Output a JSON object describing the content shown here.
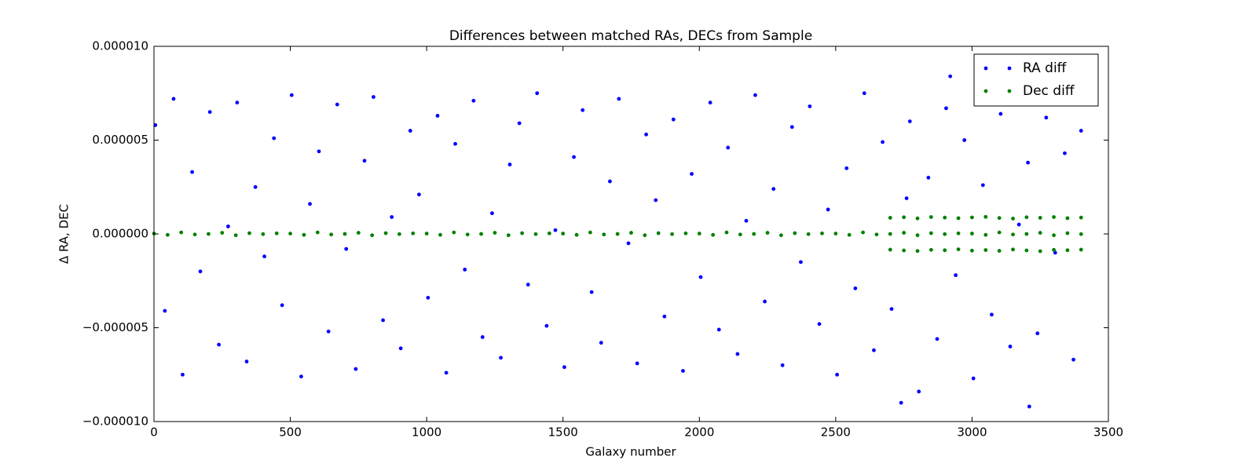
{
  "chart_data": {
    "type": "scatter",
    "title": "Differences between matched RAs, DECs from Sample",
    "xlabel": "Galaxy number",
    "ylabel": "Δ RA, DEC",
    "xlim": [
      0,
      3500
    ],
    "xticks": [
      0,
      500,
      1000,
      1500,
      2000,
      2500,
      3000,
      3500
    ],
    "ylim": [
      -1e-05,
      1e-05
    ],
    "yticks": [
      {
        "value": -1e-05,
        "label": "−0.000010"
      },
      {
        "value": -5e-06,
        "label": "−0.000005"
      },
      {
        "value": 0,
        "label": "0.000000"
      },
      {
        "value": 5e-06,
        "label": "0.000005"
      },
      {
        "value": 1e-05,
        "label": "0.000010"
      }
    ],
    "legend": "upper right",
    "series": [
      {
        "name": "RA diff",
        "color": "#0000ff",
        "x": [
          5,
          40,
          72,
          105,
          140,
          170,
          205,
          238,
          272,
          305,
          340,
          372,
          405,
          440,
          470,
          505,
          540,
          572,
          605,
          640,
          672,
          705,
          740,
          772,
          805,
          840,
          872,
          905,
          940,
          972,
          1005,
          1040,
          1072,
          1105,
          1140,
          1172,
          1205,
          1240,
          1272,
          1305,
          1340,
          1372,
          1405,
          1440,
          1472,
          1505,
          1540,
          1572,
          1605,
          1640,
          1672,
          1705,
          1740,
          1772,
          1805,
          1840,
          1872,
          1905,
          1940,
          1972,
          2005,
          2040,
          2072,
          2105,
          2140,
          2172,
          2205,
          2240,
          2272,
          2305,
          2340,
          2372,
          2405,
          2440,
          2472,
          2505,
          2540,
          2572,
          2605,
          2640,
          2672,
          2705,
          2740,
          2760,
          2772,
          2805,
          2840,
          2872,
          2905,
          2920,
          2940,
          2972,
          3005,
          3040,
          3072,
          3105,
          3140,
          3172,
          3205,
          3210,
          3240,
          3272,
          3305,
          3340,
          3372,
          3400
        ],
        "values": [
          5.8e-06,
          -4.1e-06,
          7.2e-06,
          -7.5e-06,
          3.3e-06,
          -2e-06,
          6.5e-06,
          -5.9e-06,
          4e-07,
          7e-06,
          -6.8e-06,
          2.5e-06,
          -1.2e-06,
          5.1e-06,
          -3.8e-06,
          7.4e-06,
          -7.6e-06,
          1.6e-06,
          4.4e-06,
          -5.2e-06,
          6.9e-06,
          -8e-07,
          -7.2e-06,
          3.9e-06,
          7.3e-06,
          -4.6e-06,
          9e-07,
          -6.1e-06,
          5.5e-06,
          2.1e-06,
          -3.4e-06,
          6.3e-06,
          -7.4e-06,
          4.8e-06,
          -1.9e-06,
          7.1e-06,
          -5.5e-06,
          1.1e-06,
          -6.6e-06,
          3.7e-06,
          5.9e-06,
          -2.7e-06,
          7.5e-06,
          -4.9e-06,
          2e-07,
          -7.1e-06,
          4.1e-06,
          6.6e-06,
          -3.1e-06,
          -5.8e-06,
          2.8e-06,
          7.2e-06,
          -5e-07,
          -6.9e-06,
          5.3e-06,
          1.8e-06,
          -4.4e-06,
          6.1e-06,
          -7.3e-06,
          3.2e-06,
          -2.3e-06,
          7e-06,
          -5.1e-06,
          4.6e-06,
          -6.4e-06,
          7e-07,
          7.4e-06,
          -3.6e-06,
          2.4e-06,
          -7e-06,
          5.7e-06,
          -1.5e-06,
          6.8e-06,
          -4.8e-06,
          1.3e-06,
          -7.5e-06,
          3.5e-06,
          -2.9e-06,
          7.5e-06,
          -6.2e-06,
          4.9e-06,
          -4e-06,
          -9e-06,
          1.9e-06,
          6e-06,
          -8.4e-06,
          3e-06,
          -5.6e-06,
          6.7e-06,
          8.4e-06,
          -2.2e-06,
          5e-06,
          -7.7e-06,
          2.6e-06,
          -4.3e-06,
          6.4e-06,
          -6e-06,
          5e-07,
          3.8e-06,
          -9.2e-06,
          -5.3e-06,
          6.2e-06,
          -1e-06,
          4.3e-06,
          -6.7e-06,
          5.5e-06
        ]
      },
      {
        "name": "Dec diff",
        "color": "#008000",
        "x": [
          0,
          50,
          100,
          150,
          200,
          250,
          300,
          350,
          400,
          450,
          500,
          550,
          600,
          650,
          700,
          750,
          800,
          850,
          900,
          950,
          1000,
          1050,
          1100,
          1150,
          1200,
          1250,
          1300,
          1350,
          1400,
          1450,
          1500,
          1550,
          1600,
          1650,
          1700,
          1750,
          1800,
          1850,
          1900,
          1950,
          2000,
          2050,
          2100,
          2150,
          2200,
          2250,
          2300,
          2350,
          2400,
          2450,
          2500,
          2550,
          2600,
          2650,
          2700,
          2750,
          2800,
          2850,
          2900,
          2950,
          3000,
          3050,
          3100,
          3150,
          3200,
          3250,
          3300,
          3350,
          3400,
          2700,
          2750,
          2800,
          2850,
          2900,
          2950,
          3000,
          3050,
          3100,
          3150,
          3200,
          3250,
          3300,
          3350,
          3400,
          2700,
          2750,
          2800,
          2850,
          2900,
          2950,
          3000,
          3050,
          3100,
          3150,
          3200,
          3250,
          3300,
          3350,
          3400
        ],
        "values": [
          2e-08,
          -5e-08,
          8e-08,
          -3e-08,
          0,
          6e-08,
          -7e-08,
          4e-08,
          -1e-08,
          3e-08,
          2e-08,
          -5e-08,
          8e-08,
          -3e-08,
          0,
          6e-08,
          -7e-08,
          4e-08,
          -1e-08,
          3e-08,
          2e-08,
          -5e-08,
          8e-08,
          -3e-08,
          0,
          6e-08,
          -7e-08,
          4e-08,
          -1e-08,
          3e-08,
          2e-08,
          -5e-08,
          8e-08,
          -3e-08,
          0,
          6e-08,
          -7e-08,
          4e-08,
          -1e-08,
          3e-08,
          2e-08,
          -5e-08,
          8e-08,
          -3e-08,
          0,
          6e-08,
          -7e-08,
          4e-08,
          -1e-08,
          3e-08,
          2e-08,
          -5e-08,
          8e-08,
          -3e-08,
          0,
          6e-08,
          -7e-08,
          4e-08,
          -1e-08,
          3e-08,
          2e-08,
          -5e-08,
          8e-08,
          -3e-08,
          0,
          6e-08,
          -7e-08,
          4e-08,
          -1e-08,
          8.6e-07,
          8.9e-07,
          8.3e-07,
          9e-07,
          8.7e-07,
          8.4e-07,
          8.8e-07,
          9.1e-07,
          8.5e-07,
          8.2e-07,
          8.9e-07,
          8.6e-07,
          9e-07,
          8.4e-07,
          8.7e-07,
          -8.4e-07,
          -8.8e-07,
          -9.1e-07,
          -8.5e-07,
          -8.7e-07,
          -8.2e-07,
          -8.9e-07,
          -8.6e-07,
          -9e-07,
          -8.3e-07,
          -8.8e-07,
          -9.2e-07,
          -8.5e-07,
          -8.7e-07,
          -8.4e-07
        ]
      }
    ]
  }
}
